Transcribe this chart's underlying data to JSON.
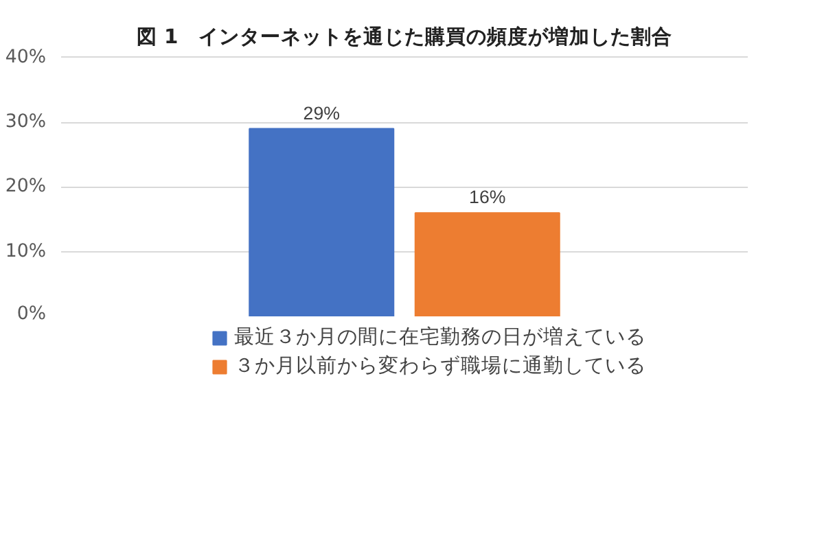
{
  "chart_data": {
    "type": "bar",
    "title": "図 1　インターネットを通じた購買の頻度が増加した割合",
    "categories": [
      null
    ],
    "series": [
      {
        "name": "最近３か月の間に在宅勤務の日が増えている",
        "color": "#4472c4",
        "values": [
          29
        ],
        "value_labels": [
          "29%"
        ]
      },
      {
        "name": "３か月以前から変わらず職場に通勤している",
        "color": "#ed7d31",
        "values": [
          16
        ],
        "value_labels": [
          "16%"
        ]
      }
    ],
    "ylim": [
      0,
      40
    ],
    "yticks": [
      {
        "value": 0,
        "label": "0%"
      },
      {
        "value": 10,
        "label": "10%"
      },
      {
        "value": 20,
        "label": "20%"
      },
      {
        "value": 30,
        "label": "30%"
      },
      {
        "value": 40,
        "label": "40%"
      }
    ],
    "grid": "y",
    "legend": "bottom"
  }
}
